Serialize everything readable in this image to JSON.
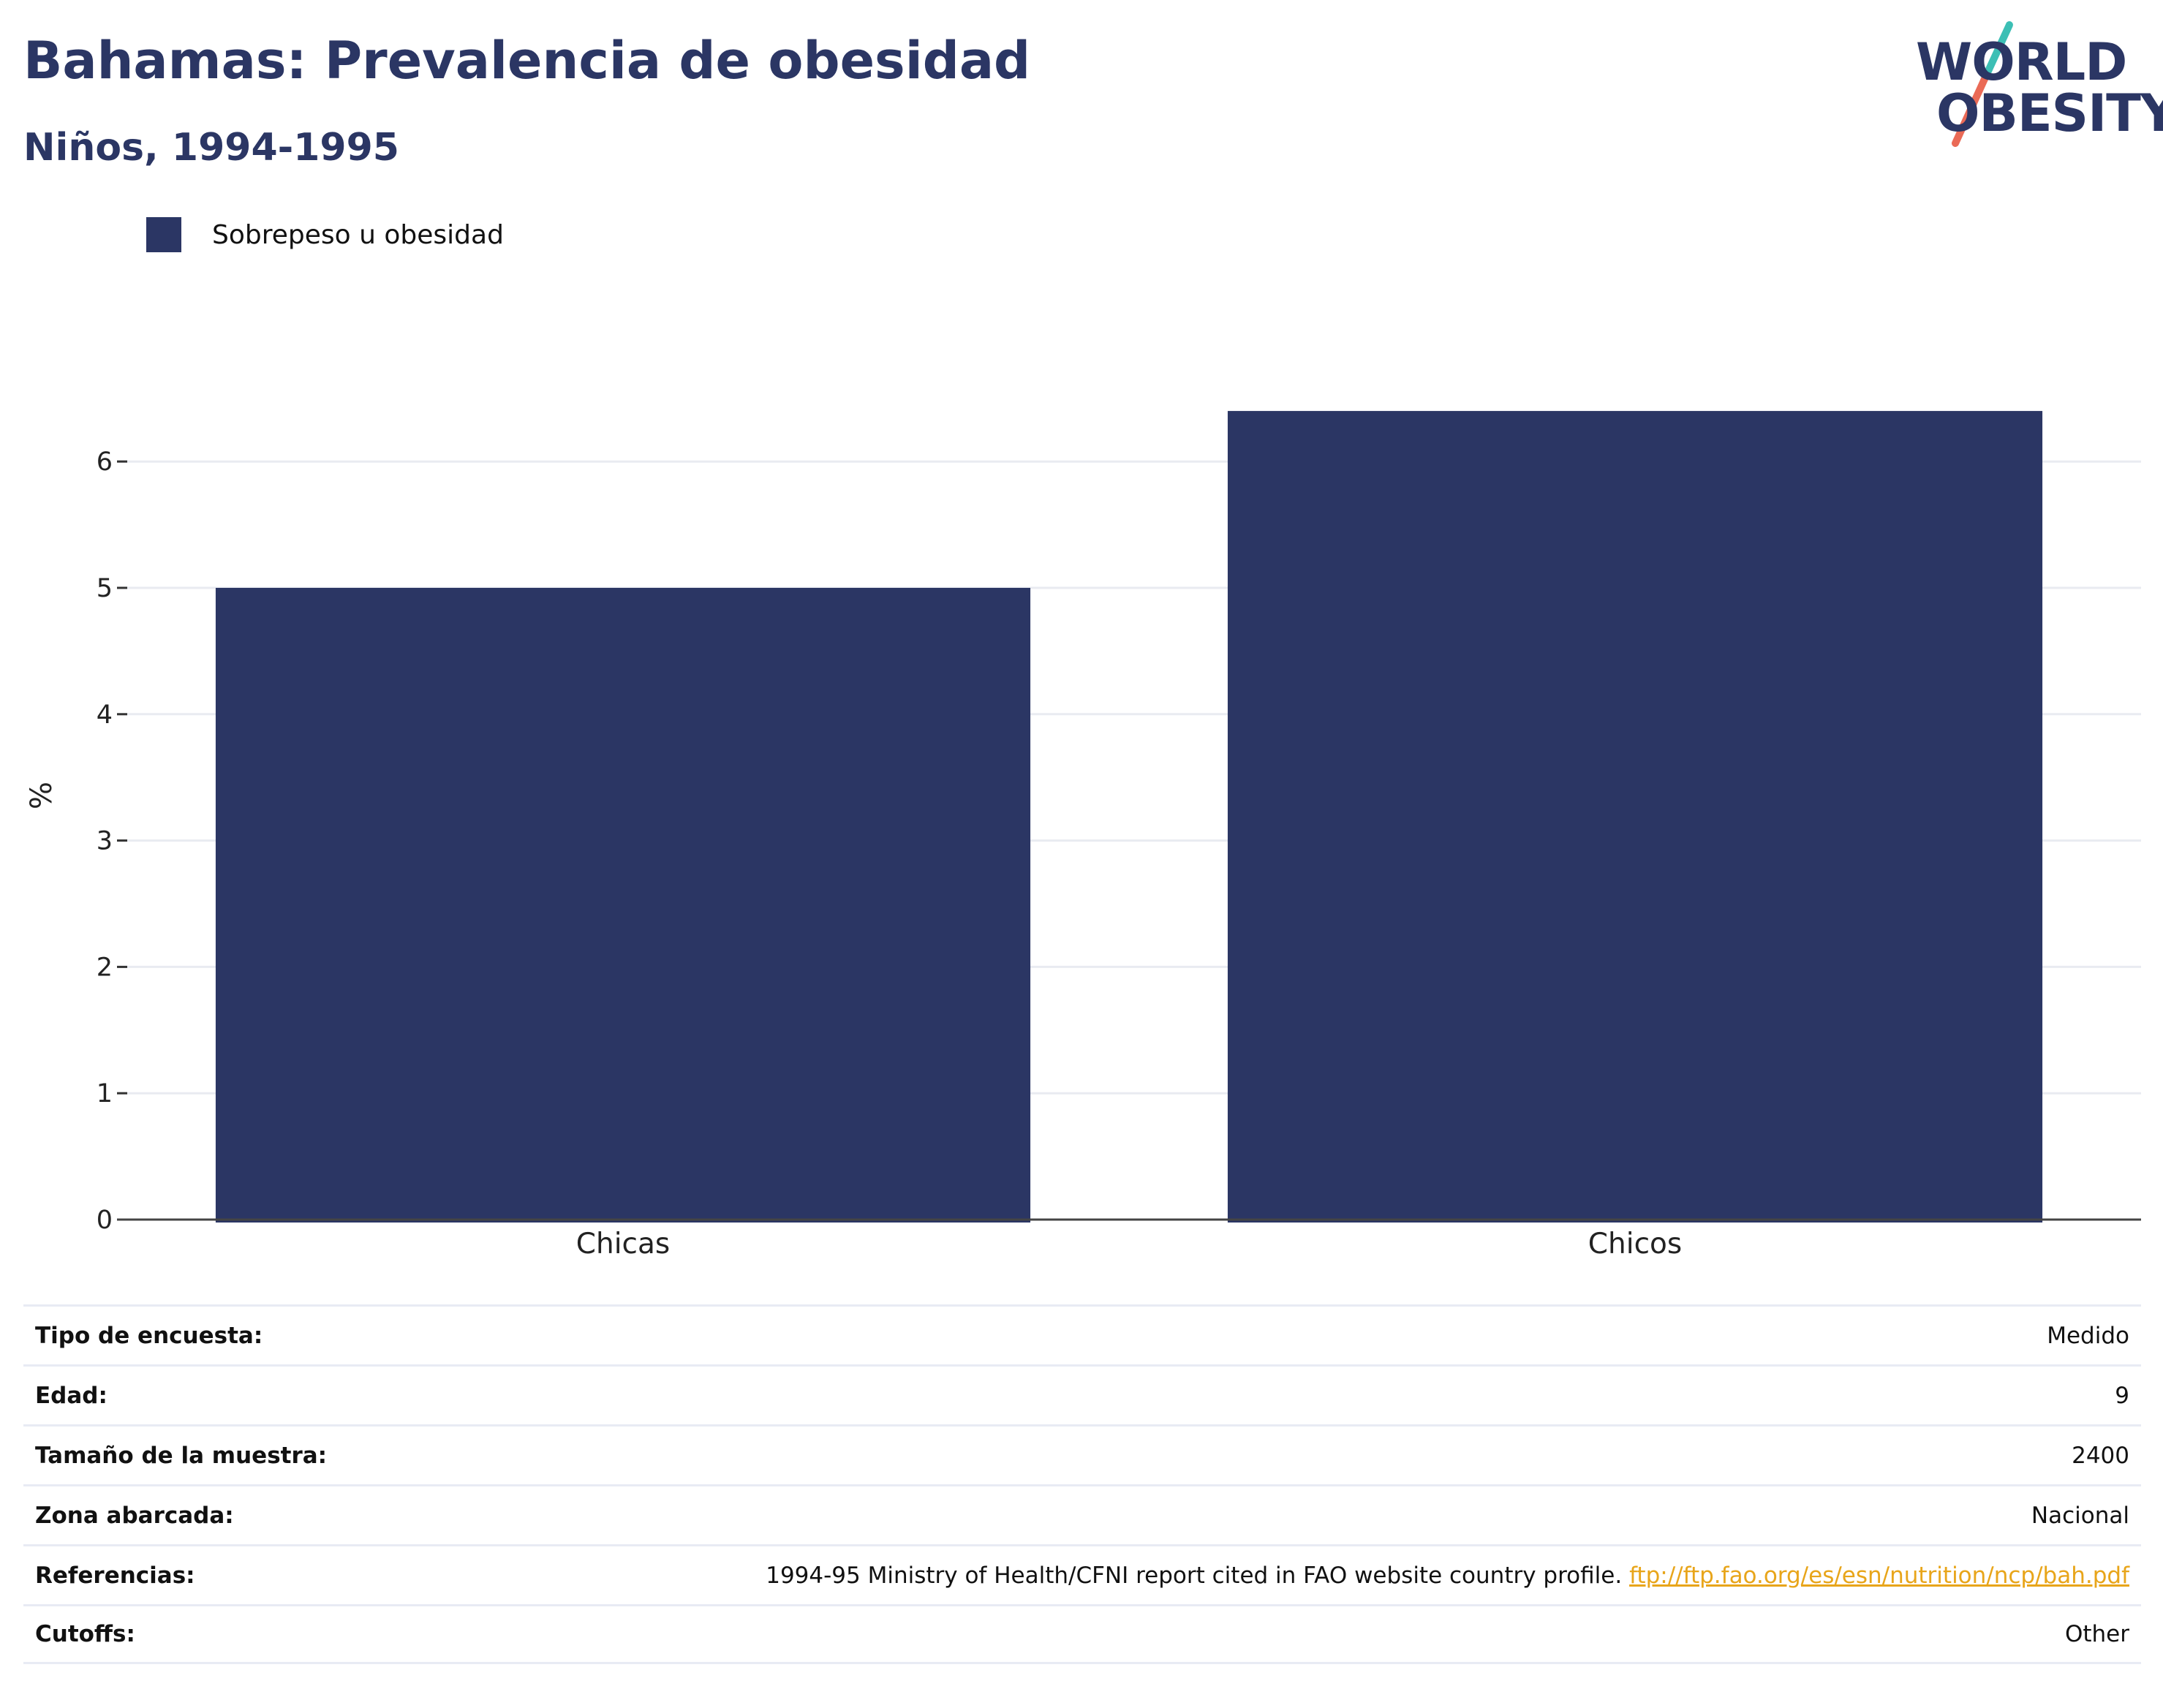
{
  "header": {
    "title": "Bahamas: Prevalencia de obesidad",
    "subtitle": "Niños, 1994-1995"
  },
  "logo": {
    "line1": "WORLD",
    "line2": "OBESITY",
    "slash_colors": [
      "#3cbfb5",
      "#ea6a56"
    ]
  },
  "chart_data": {
    "type": "bar",
    "categories": [
      "Chicas",
      "Chicos"
    ],
    "series": [
      {
        "name": "Sobrepeso u obesidad",
        "values": [
          5.0,
          6.4
        ],
        "color": "#2b3664"
      }
    ],
    "ylabel": "%",
    "ylim": [
      0,
      7
    ],
    "yticks": [
      0,
      1,
      2,
      3,
      4,
      5,
      6
    ],
    "grid": true,
    "legend": "top-left"
  },
  "meta": {
    "rows": [
      {
        "key": "Tipo de encuesta:",
        "value": "Medido"
      },
      {
        "key": "Edad:",
        "value": "9"
      },
      {
        "key": "Tamaño de la muestra:",
        "value": "2400"
      },
      {
        "key": "Zona abarcada:",
        "value": "Nacional"
      },
      {
        "key": "Referencias:",
        "value": "1994-95 Ministry of Health/CFNI report cited in FAO website country profile.",
        "link": "ftp://ftp.fao.org/es/esn/nutrition/ncp/bah.pdf"
      },
      {
        "key": "Cutoffs:",
        "value": "Other"
      }
    ]
  }
}
